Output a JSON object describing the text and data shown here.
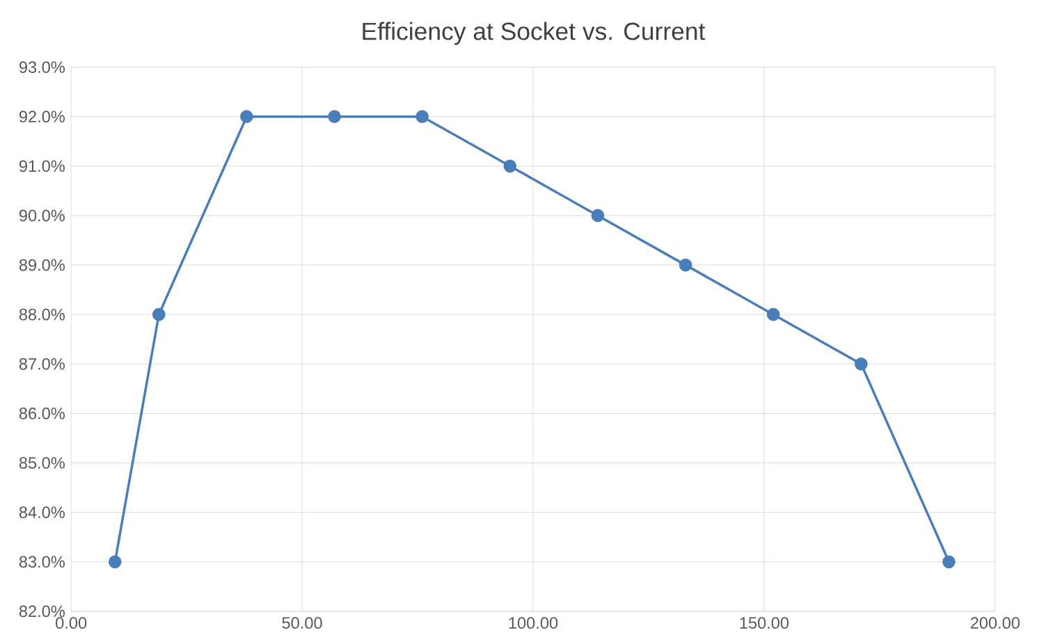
{
  "chart_data": {
    "type": "line",
    "title": "Efficiency at Socket vs. Current",
    "x": [
      9.5,
      19,
      38,
      57,
      76,
      95,
      114,
      133,
      152,
      171,
      190
    ],
    "series": [
      {
        "color": "#4a7ebb",
        "values": [
          83,
          88,
          92,
          92,
          92,
          91,
          90,
          89,
          88,
          87,
          83
        ]
      }
    ],
    "xlim": [
      0,
      200
    ],
    "xticks": [
      {
        "value": 0,
        "label": "0.00"
      },
      {
        "value": 50,
        "label": "50.00"
      },
      {
        "value": 100,
        "label": "100.00"
      },
      {
        "value": 150,
        "label": "150.00"
      },
      {
        "value": 200,
        "label": "200.00"
      }
    ],
    "ylim": [
      82,
      93
    ],
    "yticks": [
      {
        "value": 82,
        "label": "82.0%"
      },
      {
        "value": 83,
        "label": "83.0%"
      },
      {
        "value": 84,
        "label": "84.0%"
      },
      {
        "value": 85,
        "label": "85.0%"
      },
      {
        "value": 86,
        "label": "86.0%"
      },
      {
        "value": 87,
        "label": "87.0%"
      },
      {
        "value": 88,
        "label": "88.0%"
      },
      {
        "value": 89,
        "label": "89.0%"
      },
      {
        "value": 90,
        "label": "90.0%"
      },
      {
        "value": 91,
        "label": "91.0%"
      },
      {
        "value": 92,
        "label": "92.0%"
      },
      {
        "value": 93,
        "label": "93.0%"
      }
    ],
    "grid": true,
    "marker": "circle",
    "line_style": "solid"
  }
}
